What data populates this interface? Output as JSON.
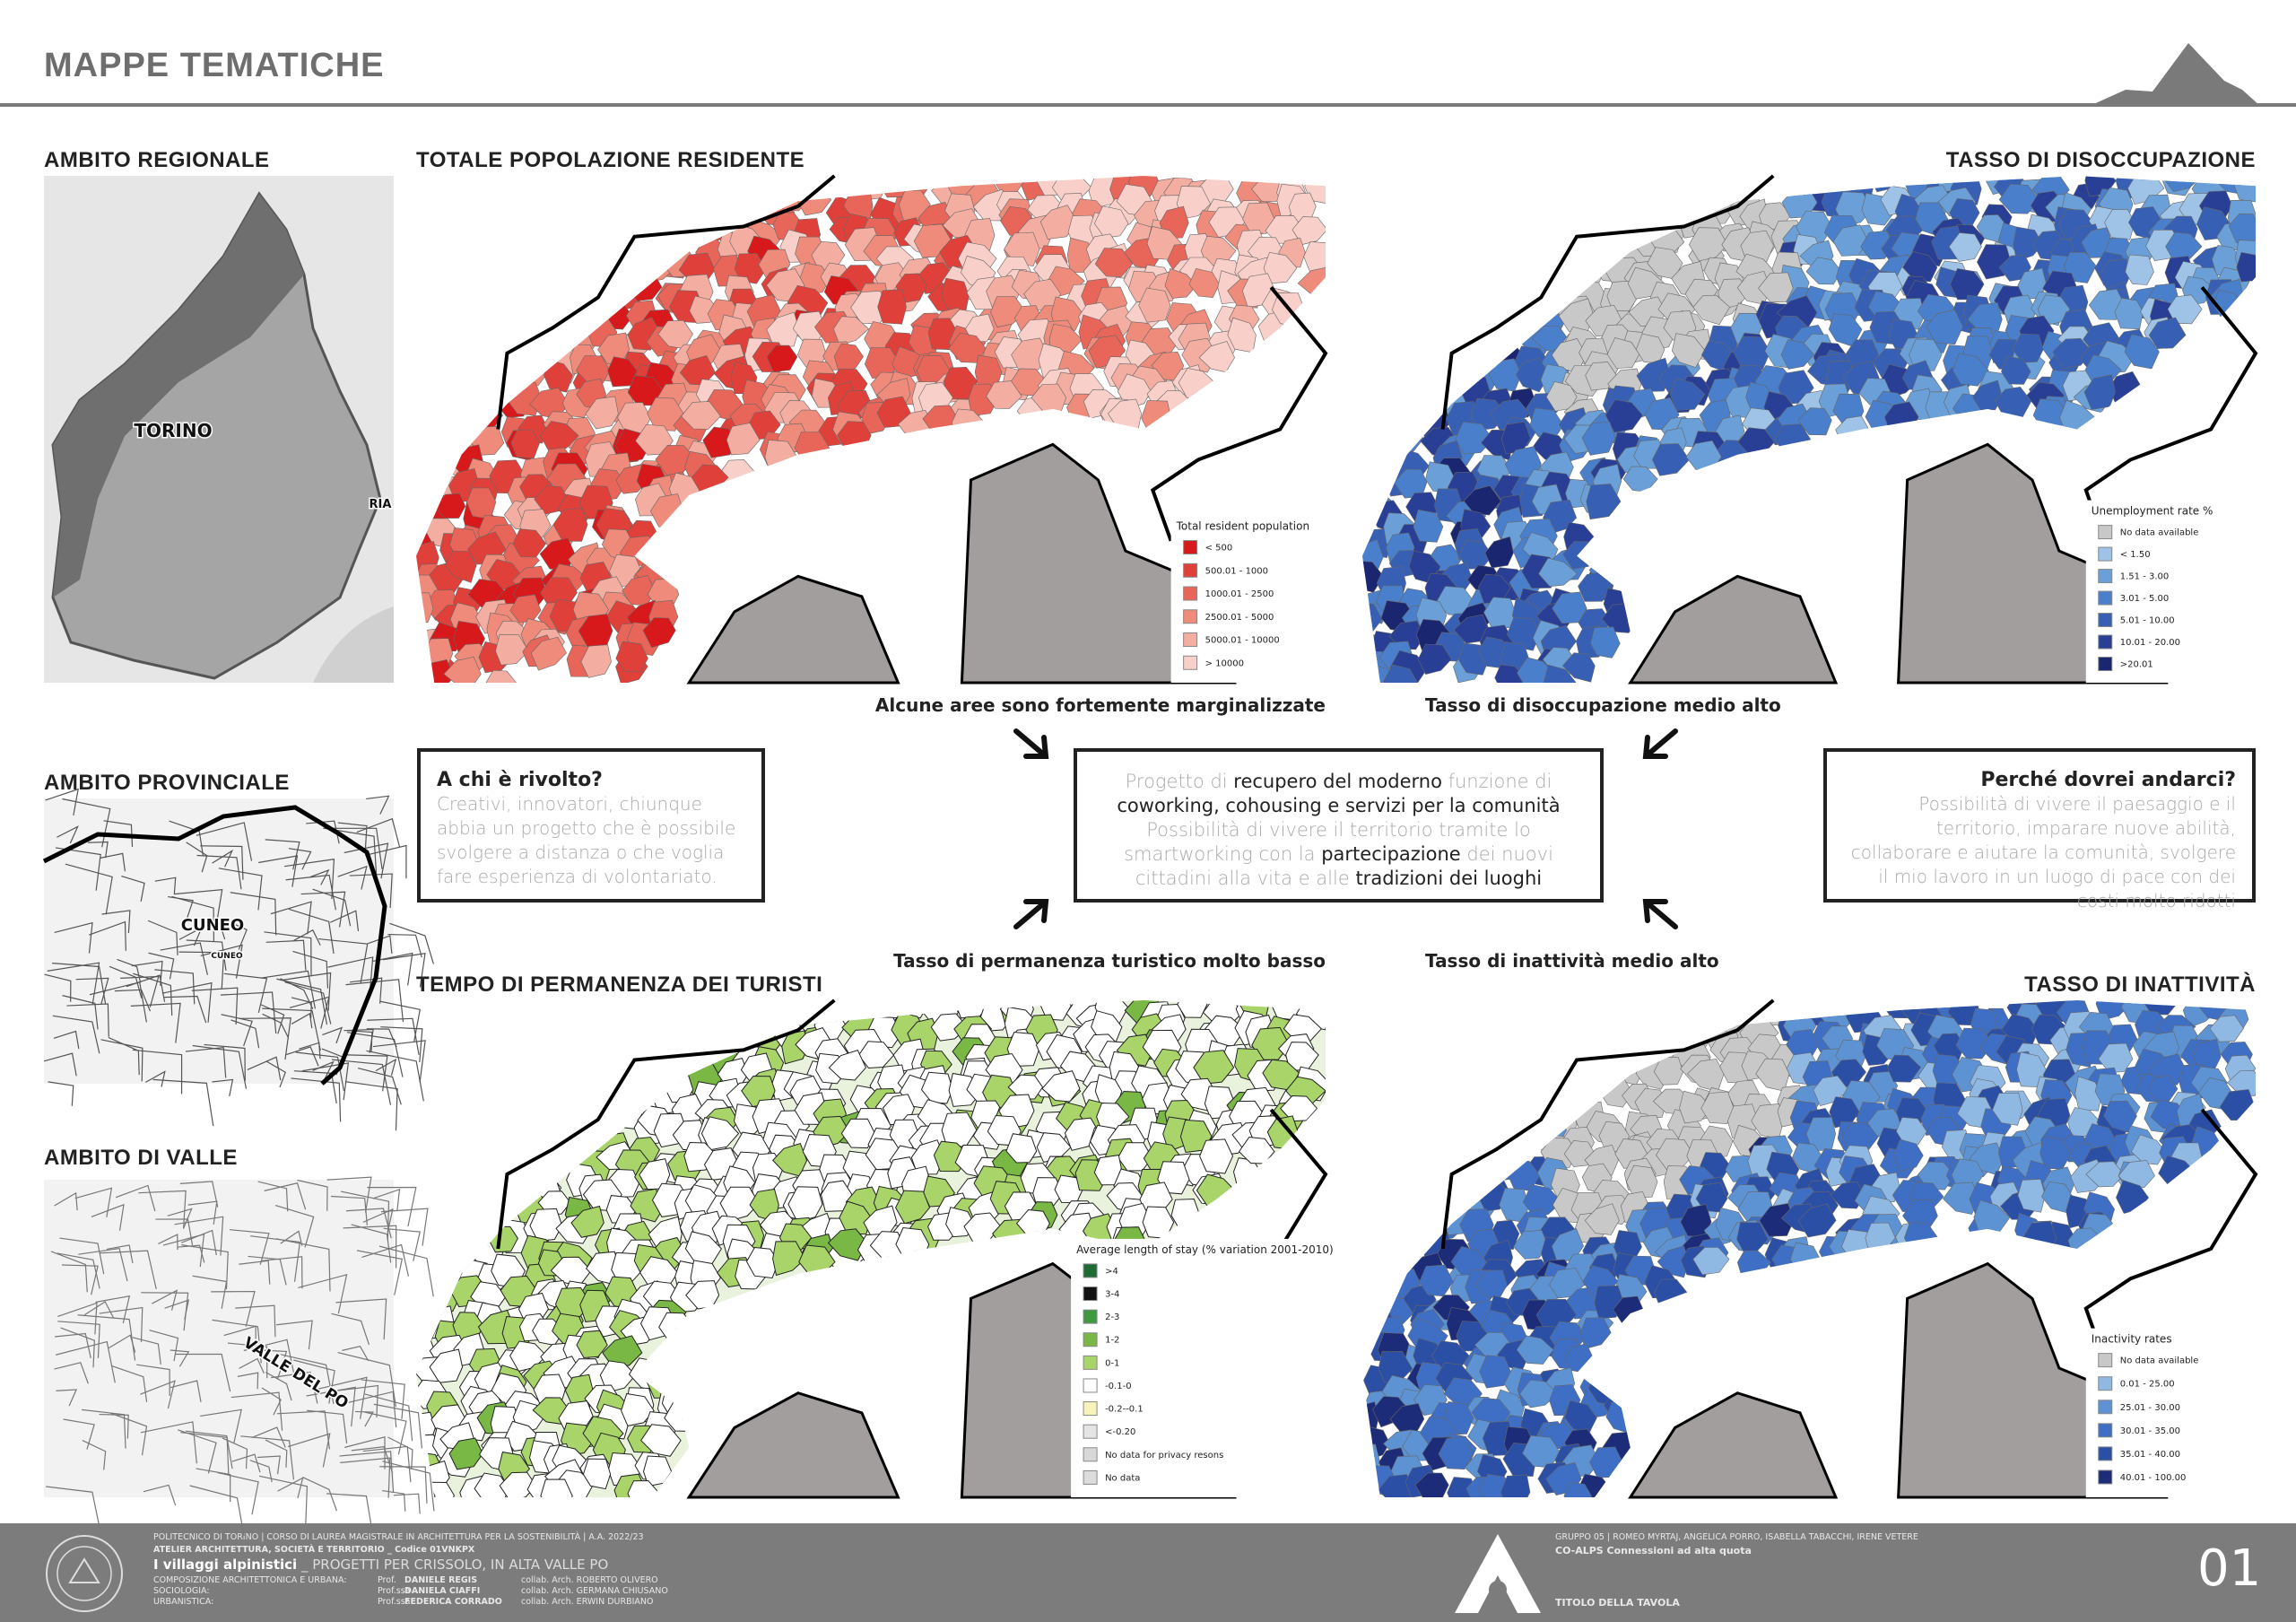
{
  "header": {
    "title": "MAPPE TEMATICHE"
  },
  "context": [
    {
      "title": "AMBITO REGIONALE",
      "labels": [
        "TORINO",
        "RIA"
      ]
    },
    {
      "title": "AMBITO PROVINCIALE",
      "labels": [
        "CUNEO",
        "CUNEO"
      ]
    },
    {
      "title": "AMBITO DI VALLE",
      "labels": [
        "VALLE DEL PO"
      ]
    }
  ],
  "maps": [
    {
      "title": "TOTALE POPOLAZIONE RESIDENTE",
      "legend_title": "Total resident population",
      "legend": [
        {
          "label": "< 500",
          "color": "#d7191c"
        },
        {
          "label": "500.01 - 1000",
          "color": "#e0403a"
        },
        {
          "label": "1000.01 - 2500",
          "color": "#e86659"
        },
        {
          "label": "2500.01 - 5000",
          "color": "#ef8b7b"
        },
        {
          "label": "5000.01 - 10000",
          "color": "#f4ada1"
        },
        {
          "label": "> 10000",
          "color": "#f8cfc9"
        }
      ]
    },
    {
      "title": "TASSO DI DISOCCUPAZIONE",
      "legend_title": "Unemployment rate %",
      "legend": [
        {
          "label": "No data available",
          "color": "#c8c8c8"
        },
        {
          "label": "< 1.50",
          "color": "#9ec3e6"
        },
        {
          "label": "1.51 - 3.00",
          "color": "#6a9fd8"
        },
        {
          "label": "3.01 - 5.00",
          "color": "#4a7fcc"
        },
        {
          "label": "5.01 - 10.00",
          "color": "#3760b5"
        },
        {
          "label": "10.01 - 20.00",
          "color": "#283f95"
        },
        {
          "label": ">20.01",
          "color": "#1b2670"
        }
      ]
    },
    {
      "title": "TEMPO DI PERMANENZA DEI TURISTI",
      "legend_title": "Average length of stay (% variation 2001-2010)",
      "legend": [
        {
          "label": ">4",
          "color": "#1e6b34"
        },
        {
          "label": "3-4",
          "color": "#111111"
        },
        {
          "label": "2-3",
          "color": "#3f9a3f"
        },
        {
          "label": "1-2",
          "color": "#79b845"
        },
        {
          "label": "0-1",
          "color": "#a8d46a"
        },
        {
          "label": "-0.1-0",
          "color": "#ffffff"
        },
        {
          "label": "-0.2--0.1",
          "color": "#f8f3b8"
        },
        {
          "label": "<-0.20",
          "color": "#e4e4e4"
        },
        {
          "label": "No data for privacy resons",
          "color": "#d8d8d8"
        },
        {
          "label": "No data",
          "color": "#dcdcdc"
        }
      ]
    },
    {
      "title": "TASSO DI INATTIVITÀ",
      "legend_title": "Inactivity rates",
      "legend": [
        {
          "label": "No data available",
          "color": "#c8c8c8"
        },
        {
          "label": "0.01 - 25.00",
          "color": "#8fb8e3"
        },
        {
          "label": "25.01 - 30.00",
          "color": "#5e93d3"
        },
        {
          "label": "30.01 - 35.00",
          "color": "#3f6fc4"
        },
        {
          "label": "35.01 - 40.00",
          "color": "#2c4fa6"
        },
        {
          "label": "40.01 - 100.00",
          "color": "#1c2c78"
        }
      ]
    }
  ],
  "captions": [
    "Alcune aree sono fortemente marginalizzate",
    "Tasso di disoccupazione medio alto",
    "Tasso di permanenza turistico molto basso",
    "Tasso di inattività medio alto"
  ],
  "boxes": {
    "left": {
      "title": "A chi è rivolto?",
      "body": "Creativi, innovatori, chiunque abbia un progetto che è possibile svolgere a distanza o che voglia fare esperienza di volontariato."
    },
    "center": {
      "segments": [
        {
          "text": "Progetto di ",
          "bold": false
        },
        {
          "text": "recupero del moderno",
          "bold": true
        },
        {
          "text": " funzione di ",
          "bold": false
        },
        {
          "text": "coworking, cohousing e servizi per la comunità",
          "bold": true
        },
        {
          "text": " Possibilità di vivere il territorio tramite lo smartworking con la ",
          "bold": false
        },
        {
          "text": "partecipazione",
          "bold": true
        },
        {
          "text": " dei nuovi cittadini alla vita e alle ",
          "bold": false
        },
        {
          "text": "tradizioni dei luoghi",
          "bold": true
        }
      ]
    },
    "right": {
      "title": "Perché dovrei andarci?",
      "body": "Possibilità di vivere il paesaggio e il territorio, imparare nuove abilità, collaborare e aiutare la comunità, svolgere il mio lavoro in un luogo di pace con dei costi molto ridotti"
    }
  },
  "footer": {
    "line1": "POLITECNICO DI TORINO | CORSO DI LAUREA MAGISTRALE IN ARCHITETTURA PER LA SOSTENIBILITÀ | A.A. 2022/23",
    "line2": "ATELIER ARCHITETTURA, SOCIETÀ E TERRITORIO _ Codice 01VNKPX",
    "project": "I villaggi alpinistici",
    "subtitle": " _ PROGETTI PER CRISSOLO, IN ALTA VALLE PO",
    "credits": [
      [
        "COMPOSIZIONE ARCHITETTONICA E URBANA:",
        "Prof.",
        "DANIELE REGIS",
        "collab. Arch. ROBERTO OLIVERO"
      ],
      [
        "SOCIOLOGIA:",
        "Prof.ssa",
        "DANIELA CIAFFI",
        "collab. Arch. GERMANA CHIUSANO"
      ],
      [
        "URBANISTICA:",
        "Prof.ssa",
        "FEDERICA CORRADO",
        "collab. Arch. ERWIN DURBIANO"
      ]
    ],
    "group": "GRUPPO 05 | ROMEO MYRTAJ, ANGELICA PORRO, ISABELLA TABACCHI, IRENE VETERE",
    "group_title": "CO-ALPS Connessioni ad alta quota",
    "sheet_title": "TITOLO DELLA TAVOLA",
    "sheet_number": "01"
  }
}
